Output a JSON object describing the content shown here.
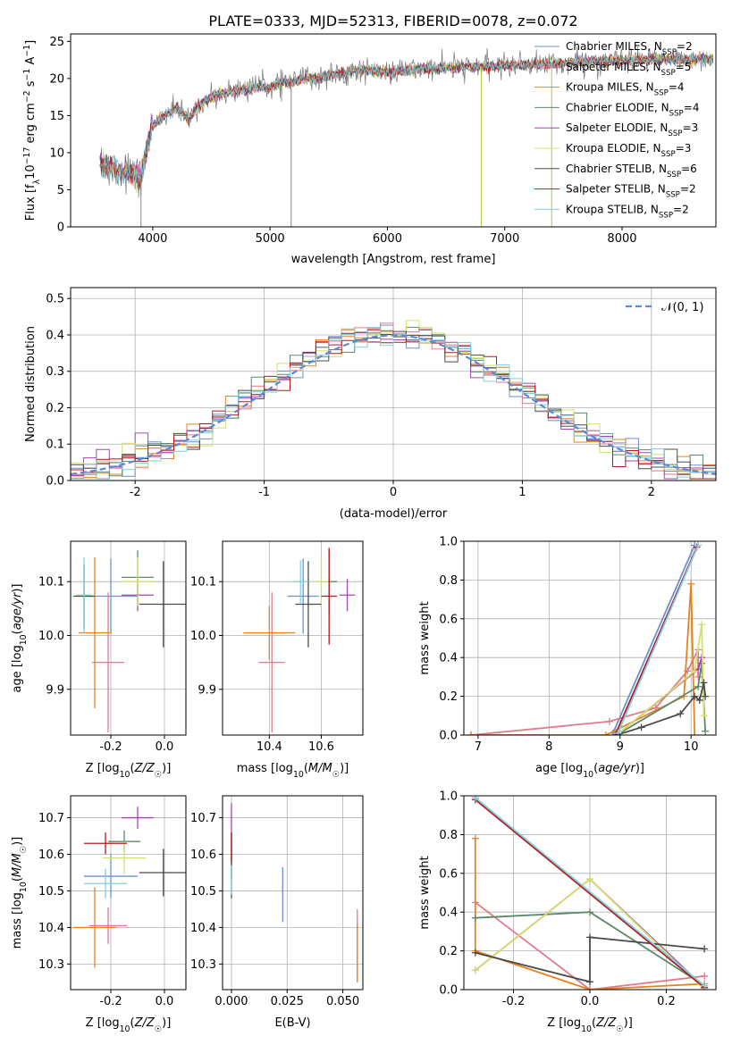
{
  "figure": {
    "title": "PLATE=0333, MJD=52313, FIBERID=0078, z=0.072"
  },
  "colors": {
    "chabrier_miles": "#6d8fd6",
    "salpeter_miles": "#e37a8a",
    "kroupa_miles": "#e8821e",
    "chabrier_elodie": "#5b8a6a",
    "salpeter_elodie": "#a447b4",
    "kroupa_elodie": "#d6df6a",
    "chabrier_stelib": "#4a4a4a",
    "salpeter_stelib": "#b01c1c",
    "kroupa_stelib": "#80cfe0",
    "gaussian": "#5b88d8",
    "grid": "#b0b0b0"
  },
  "chart_data": [
    {
      "id": "spectrum",
      "type": "line",
      "xlabel": "wavelength [Angstrom, rest frame]",
      "ylabel": "Flux [f_λ10^-17 erg cm^-2 s^-1 A^-1]",
      "xlim": [
        3300,
        8800
      ],
      "ylim": [
        0,
        26
      ],
      "xticks": [
        4000,
        5000,
        6000,
        7000,
        8000
      ],
      "yticks": [
        0,
        5,
        10,
        15,
        20,
        25
      ],
      "grid": false,
      "legend_loc": "right",
      "continuum": {
        "x": [
          3550,
          3650,
          3700,
          3800,
          3900,
          3950,
          4000,
          4100,
          4200,
          4300,
          4400,
          4500,
          4600,
          4700,
          4800,
          4900,
          5000,
          5100,
          5200,
          5300,
          5400,
          5500,
          5600,
          5700,
          5800,
          5900,
          6000,
          6200,
          6400,
          6600,
          6800,
          7000,
          7200,
          7400,
          7600,
          7800,
          8000,
          8200,
          8400,
          8600,
          8750
        ],
        "y": [
          8.5,
          8.0,
          7.5,
          7.5,
          6.5,
          11.0,
          13.5,
          15.0,
          16.0,
          14.5,
          16.5,
          17.5,
          18.0,
          18.3,
          18.5,
          19.0,
          18.8,
          19.5,
          19.5,
          20.0,
          20.0,
          20.5,
          20.5,
          21.0,
          21.2,
          21.0,
          20.8,
          21.2,
          21.3,
          21.5,
          21.6,
          21.7,
          21.9,
          22.0,
          22.2,
          22.3,
          22.4,
          22.5,
          22.5,
          22.6,
          22.7
        ]
      },
      "legend": [
        {
          "label": "Chabrier MILES, N",
          "sub": "SSP",
          "suffix": "=2"
        },
        {
          "label": "Salpeter MILES, N",
          "sub": "SSP",
          "suffix": "=5"
        },
        {
          "label": "Kroupa MILES, N",
          "sub": "SSP",
          "suffix": "=4"
        },
        {
          "label": "Chabrier ELODIE, N",
          "sub": "SSP",
          "suffix": "=4"
        },
        {
          "label": "Salpeter ELODIE, N",
          "sub": "SSP",
          "suffix": "=3"
        },
        {
          "label": "Kroupa ELODIE, N",
          "sub": "SSP",
          "suffix": "=3"
        },
        {
          "label": "Chabrier STELIB, N",
          "sub": "SSP",
          "suffix": "=6"
        },
        {
          "label": "Salpeter STELIB, N",
          "sub": "SSP",
          "suffix": "=2"
        },
        {
          "label": "Kroupa STELIB, N",
          "sub": "SSP",
          "suffix": "=2"
        }
      ]
    },
    {
      "id": "residuals",
      "type": "line",
      "xlabel": "(data-model)/error",
      "ylabel": "Normed distribution",
      "xlim": [
        -2.5,
        2.5
      ],
      "ylim": [
        0,
        0.53
      ],
      "xticks": [
        -2,
        -1,
        0,
        1,
        2
      ],
      "yticks": [
        0.0,
        0.1,
        0.2,
        0.3,
        0.4,
        0.5
      ],
      "grid": true,
      "legend_loc": "top-right",
      "legend": [
        "𝒩(0, 1)"
      ]
    },
    {
      "id": "age_vs_Z",
      "type": "scatter",
      "xlabel": "Z [log10(Z/Z☉)]",
      "ylabel": "age [log10(age/yr)]",
      "xlim": [
        -0.35,
        0.08
      ],
      "ylim": [
        9.815,
        10.175
      ],
      "xticks": [
        -0.2,
        0.0
      ],
      "yticks": [
        9.9,
        10.0,
        10.1
      ],
      "grid": true,
      "points": [
        {
          "x": -0.2,
          "y": 10.073,
          "xerr": 0.1,
          "yerr": 0.07,
          "c": "chabrier_miles"
        },
        {
          "x": -0.21,
          "y": 9.95,
          "xerr": 0.06,
          "yerr": 0.13,
          "c": "salpeter_miles"
        },
        {
          "x": -0.26,
          "y": 10.005,
          "xerr": 0.06,
          "yerr": 0.14,
          "c": "kroupa_miles"
        },
        {
          "x": -0.1,
          "y": 10.108,
          "xerr": 0.06,
          "yerr": 0.05,
          "c": "chabrier_elodie"
        },
        {
          "x": -0.1,
          "y": 10.075,
          "xerr": 0.06,
          "yerr": 0.03,
          "c": "salpeter_elodie"
        },
        {
          "x": -0.1,
          "y": 10.1,
          "xerr": 0.06,
          "yerr": 0.045,
          "c": "kroupa_elodie"
        },
        {
          "x": -0.004,
          "y": 10.058,
          "xerr": 0.09,
          "yerr": 0.08,
          "c": "chabrier_stelib"
        },
        {
          "x": -0.3,
          "y": 10.073,
          "xerr": 0.04,
          "yerr": 0.06,
          "c": "salpeter_stelib"
        },
        {
          "x": -0.3,
          "y": 10.075,
          "xerr": 0.03,
          "yerr": 0.07,
          "c": "kroupa_stelib"
        }
      ]
    },
    {
      "id": "age_vs_mass",
      "type": "scatter",
      "xlabel": "mass [log10(M/M☉)]",
      "ylabel": "",
      "xlim": [
        10.22,
        10.76
      ],
      "ylim": [
        9.815,
        10.175
      ],
      "xticks": [
        10.4,
        10.6
      ],
      "yticks": [
        9.9,
        10.0,
        10.1
      ],
      "grid": true,
      "points": [
        {
          "x": 10.53,
          "y": 10.073,
          "xerr": 0.06,
          "yerr": 0.07,
          "c": "chabrier_miles"
        },
        {
          "x": 10.41,
          "y": 9.95,
          "xerr": 0.05,
          "yerr": 0.13,
          "c": "salpeter_miles"
        },
        {
          "x": 10.4,
          "y": 10.005,
          "xerr": 0.1,
          "yerr": 0.05,
          "c": "kroupa_miles"
        },
        {
          "x": 10.63,
          "y": 10.1,
          "xerr": 0.03,
          "yerr": 0.06,
          "c": "chabrier_elodie"
        },
        {
          "x": 10.7,
          "y": 10.075,
          "xerr": 0.03,
          "yerr": 0.03,
          "c": "salpeter_elodie"
        },
        {
          "x": 10.6,
          "y": 10.1,
          "xerr": 0.03,
          "yerr": 0.045,
          "c": "kroupa_elodie"
        },
        {
          "x": 10.55,
          "y": 10.058,
          "xerr": 0.05,
          "yerr": 0.08,
          "c": "chabrier_stelib"
        },
        {
          "x": 10.63,
          "y": 10.073,
          "xerr": 0.03,
          "yerr": 0.09,
          "c": "salpeter_stelib"
        },
        {
          "x": 10.52,
          "y": 10.1,
          "xerr": 0.03,
          "yerr": 0.04,
          "c": "kroupa_stelib"
        }
      ]
    },
    {
      "id": "weight_vs_age",
      "type": "line",
      "xlabel": "age [log10(age/yr)]",
      "ylabel": "mass weight",
      "xlim": [
        6.8,
        10.35
      ],
      "ylim": [
        0,
        1.0
      ],
      "xticks": [
        7,
        8,
        9,
        10
      ],
      "yticks": [
        0.0,
        0.2,
        0.4,
        0.6,
        0.8,
        1.0
      ],
      "grid": true,
      "series": [
        {
          "c": "chabrier_miles",
          "x": [
            8.9,
            10.05
          ],
          "y": [
            0.01,
            0.98
          ]
        },
        {
          "c": "salpeter_miles",
          "x": [
            6.9,
            8.85,
            9.5,
            9.95,
            10.1,
            10.1
          ],
          "y": [
            0.0,
            0.07,
            0.14,
            0.33,
            0.44,
            0.3
          ]
        },
        {
          "c": "kroupa_miles",
          "x": [
            6.9,
            8.8,
            9.9,
            10.0,
            10.05
          ],
          "y": [
            0.0,
            0.0,
            0.2,
            0.78,
            0.0
          ]
        },
        {
          "c": "chabrier_elodie",
          "x": [
            8.95,
            10.1,
            10.15,
            10.2
          ],
          "y": [
            0.0,
            0.25,
            0.37,
            0.02
          ]
        },
        {
          "c": "salpeter_elodie",
          "x": [
            8.95,
            10.1,
            10.15
          ],
          "y": [
            0.0,
            0.34,
            0.4
          ]
        },
        {
          "c": "kroupa_elodie",
          "x": [
            8.95,
            10.05,
            10.15,
            10.18
          ],
          "y": [
            0.0,
            0.33,
            0.57,
            0.1
          ]
        },
        {
          "c": "chabrier_stelib",
          "x": [
            8.95,
            9.3,
            9.85,
            10.05,
            10.12,
            10.18,
            10.2
          ],
          "y": [
            0.0,
            0.04,
            0.11,
            0.2,
            0.18,
            0.27,
            0.2
          ]
        },
        {
          "c": "salpeter_stelib",
          "x": [
            8.93,
            10.08
          ],
          "y": [
            0.0,
            0.97
          ]
        },
        {
          "c": "kroupa_stelib",
          "x": [
            8.97,
            10.1
          ],
          "y": [
            0.01,
            0.98
          ]
        }
      ]
    },
    {
      "id": "mass_vs_Z",
      "type": "scatter",
      "xlabel": "Z [log10(Z/Z☉)]",
      "ylabel": "mass [log10(M/M☉)]",
      "xlim": [
        -0.35,
        0.08
      ],
      "ylim": [
        10.23,
        10.76
      ],
      "xticks": [
        -0.2,
        0.0
      ],
      "yticks": [
        10.3,
        10.4,
        10.5,
        10.6,
        10.7
      ],
      "grid": true,
      "points": [
        {
          "x": -0.2,
          "y": 10.54,
          "xerr": 0.1,
          "yerr": 0.06,
          "c": "chabrier_miles"
        },
        {
          "x": -0.21,
          "y": 10.405,
          "xerr": 0.07,
          "yerr": 0.05,
          "c": "salpeter_miles"
        },
        {
          "x": -0.26,
          "y": 10.4,
          "xerr": 0.08,
          "yerr": 0.11,
          "c": "kroupa_miles"
        },
        {
          "x": -0.15,
          "y": 10.635,
          "xerr": 0.06,
          "yerr": 0.03,
          "c": "chabrier_elodie"
        },
        {
          "x": -0.1,
          "y": 10.7,
          "xerr": 0.06,
          "yerr": 0.03,
          "c": "salpeter_elodie"
        },
        {
          "x": -0.15,
          "y": 10.59,
          "xerr": 0.08,
          "yerr": 0.045,
          "c": "kroupa_elodie"
        },
        {
          "x": -0.004,
          "y": 10.55,
          "xerr": 0.09,
          "yerr": 0.065,
          "c": "chabrier_stelib"
        },
        {
          "x": -0.22,
          "y": 10.63,
          "xerr": 0.08,
          "yerr": 0.03,
          "c": "salpeter_stelib"
        },
        {
          "x": -0.22,
          "y": 10.52,
          "xerr": 0.08,
          "yerr": 0.04,
          "c": "kroupa_stelib"
        }
      ]
    },
    {
      "id": "mass_vs_ebv",
      "type": "scatter",
      "xlabel": "E(B-V)",
      "ylabel": "",
      "xlim": [
        -0.004,
        0.059
      ],
      "ylim": [
        10.23,
        10.76
      ],
      "xticks": [
        0.0,
        0.025,
        0.05
      ],
      "yticks": [
        10.3,
        10.4,
        10.5,
        10.6,
        10.7
      ],
      "grid": true,
      "points": [
        {
          "x": 0.023,
          "y": 10.49,
          "xerr": 0,
          "yerr": 0.075,
          "c": "chabrier_miles"
        },
        {
          "x": 0.0565,
          "y": 10.35,
          "xerr": 0,
          "yerr": 0.1,
          "c": "salpeter_miles"
        },
        {
          "x": 0.0565,
          "y": 10.33,
          "xerr": 0,
          "yerr": 0.08,
          "c": "kroupa_miles"
        },
        {
          "x": 0.0,
          "y": 10.6,
          "xerr": 0,
          "yerr": 0.06,
          "c": "chabrier_elodie"
        },
        {
          "x": 0.0,
          "y": 10.68,
          "xerr": 0,
          "yerr": 0.06,
          "c": "salpeter_elodie"
        },
        {
          "x": 0.0,
          "y": 10.58,
          "xerr": 0,
          "yerr": 0.05,
          "c": "kroupa_elodie"
        },
        {
          "x": 0.0,
          "y": 10.55,
          "xerr": 0,
          "yerr": 0.07,
          "c": "chabrier_stelib"
        },
        {
          "x": 0.0,
          "y": 10.62,
          "xerr": 0,
          "yerr": 0.04,
          "c": "salpeter_stelib"
        },
        {
          "x": 0.0,
          "y": 10.53,
          "xerr": 0,
          "yerr": 0.04,
          "c": "kroupa_stelib"
        }
      ]
    },
    {
      "id": "weight_vs_Z",
      "type": "line",
      "xlabel": "Z [log10(Z/Z☉)]",
      "ylabel": "mass weight",
      "xlim": [
        -0.33,
        0.33
      ],
      "ylim": [
        0,
        1.0
      ],
      "xticks": [
        -0.2,
        0.0,
        0.2
      ],
      "yticks": [
        0.0,
        0.2,
        0.4,
        0.6,
        0.8,
        1.0
      ],
      "grid": true,
      "series": [
        {
          "c": "chabrier_miles",
          "x": [
            -0.3,
            0.3
          ],
          "y": [
            0.99,
            0.01
          ]
        },
        {
          "c": "salpeter_miles",
          "x": [
            -0.3,
            0.0,
            0.3
          ],
          "y": [
            0.45,
            0.0,
            0.07
          ]
        },
        {
          "c": "kroupa_miles",
          "x": [
            -0.3,
            -0.3,
            0.0,
            0.3
          ],
          "y": [
            0.78,
            0.2,
            0.0,
            0.03
          ]
        },
        {
          "c": "chabrier_elodie",
          "x": [
            -0.3,
            0.0,
            0.3
          ],
          "y": [
            0.37,
            0.4,
            0.02
          ]
        },
        {
          "c": "salpeter_elodie",
          "x": [
            -0.3,
            0.0,
            0.3
          ],
          "y": [
            0.1,
            0.57,
            0.01
          ]
        },
        {
          "c": "kroupa_elodie",
          "x": [
            -0.3,
            0.0,
            0.3
          ],
          "y": [
            0.1,
            0.57,
            0.0
          ]
        },
        {
          "c": "chabrier_stelib",
          "x": [
            -0.3,
            0.0,
            0.0,
            0.3
          ],
          "y": [
            0.19,
            0.04,
            0.27,
            0.21
          ]
        },
        {
          "c": "salpeter_stelib",
          "x": [
            -0.3,
            0.3
          ],
          "y": [
            0.98,
            0.01
          ]
        },
        {
          "c": "kroupa_stelib",
          "x": [
            -0.3,
            0.3
          ],
          "y": [
            0.99,
            0.02
          ]
        }
      ]
    }
  ]
}
